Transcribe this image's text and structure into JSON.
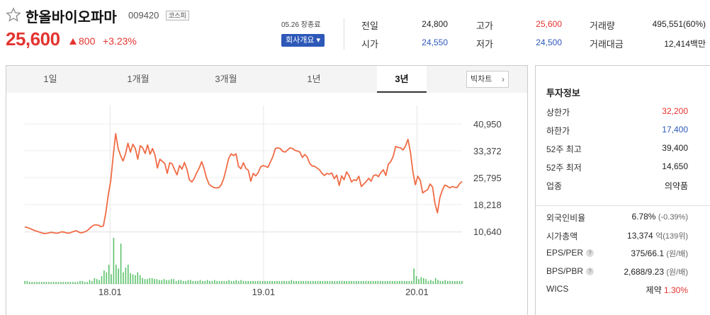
{
  "stock": {
    "name": "한올바이오파마",
    "code": "009420",
    "market": "코스피",
    "price": "25,600",
    "change": "800",
    "rate": "+3.23%"
  },
  "quote": {
    "date_label": "05.26 장종료",
    "company_button": "회사개요 ▾",
    "prev_close": {
      "label": "전일",
      "value": "24,800"
    },
    "open": {
      "label": "시가",
      "value": "24,550"
    },
    "high": {
      "label": "고가",
      "value": "25,600"
    },
    "low": {
      "label": "저가",
      "value": "24,500"
    },
    "volume": {
      "label": "거래량",
      "value": "495,551(60%)"
    },
    "amount": {
      "label": "거래대금",
      "value": "12,414백만"
    }
  },
  "tabs": [
    "1일",
    "1개월",
    "3개월",
    "1년",
    "3년"
  ],
  "active_tab": "3년",
  "bigchart_label": "빅차트",
  "invest": {
    "title": "투자정보",
    "rows": [
      {
        "label": "상한가",
        "value": "32,200",
        "color": "red"
      },
      {
        "label": "하한가",
        "value": "17,400",
        "color": "blue"
      },
      {
        "label": "52주 최고",
        "value": "39,400",
        "color": ""
      },
      {
        "label": "52주 최저",
        "value": "14,650",
        "color": ""
      },
      {
        "label": "업종",
        "value": "의약품",
        "color": ""
      }
    ],
    "rows2": [
      {
        "label": "외국인비율",
        "value": "6.78%",
        "sub": "(-0.39%)",
        "help": false
      },
      {
        "label": "시가총액",
        "value": "13,374",
        "sub": "억(139위)",
        "help": false
      },
      {
        "label": "EPS/PER",
        "value": "375/66.1",
        "sub": "(원/배)",
        "help": true
      },
      {
        "label": "BPS/PBR",
        "value": "2,688/9.23",
        "sub": "(원/배)",
        "help": true
      },
      {
        "label": "WICS",
        "value": "제약",
        "sub": "1.30%",
        "help": false
      }
    ]
  },
  "chart_data": {
    "type": "line",
    "y_ticks": [
      "40,950",
      "33,372",
      "25,795",
      "18,218",
      "10,640"
    ],
    "y_tick_values": [
      40950,
      33372,
      25795,
      18218,
      10640
    ],
    "x_ticks": [
      "18.01",
      "19.01",
      "20.01"
    ],
    "x_tick_positions": [
      0.195,
      0.546,
      0.897
    ],
    "ylim": [
      10640,
      40950
    ],
    "line_color": "#f06b45",
    "volume_color": "#5bc26a",
    "price_series": [
      11900,
      11750,
      11500,
      11200,
      10900,
      10700,
      10450,
      10250,
      10050,
      10150,
      10300,
      10400,
      10250,
      10150,
      10300,
      10550,
      10450,
      10250,
      10150,
      10400,
      10700,
      10850,
      10450,
      10250,
      10450,
      10700,
      11200,
      11900,
      12400,
      12500,
      12400,
      12000,
      12200,
      16000,
      21000,
      25000,
      32000,
      38200,
      34000,
      32000,
      30500,
      32500,
      35500,
      33000,
      35200,
      34000,
      31000,
      34800,
      34200,
      32600,
      35000,
      32400,
      34000,
      32200,
      28500,
      31000,
      30400,
      29800,
      27000,
      30000,
      29700,
      28000,
      26600,
      29200,
      28200,
      30100,
      28200,
      25200,
      24600,
      25600,
      27200,
      28500,
      30300,
      28300,
      25700,
      24000,
      23400,
      23000,
      22900,
      23000,
      23800,
      25600,
      28300,
      31200,
      32500,
      32000,
      32500,
      29000,
      28300,
      30000,
      28400,
      27900,
      24800,
      27000,
      26300,
      27200,
      28800,
      29200,
      29000,
      28700,
      30200,
      31700,
      34000,
      34200,
      34000,
      33200,
      33000,
      33600,
      34200,
      34000,
      33500,
      33300,
      33000,
      31500,
      32300,
      31600,
      29800,
      29100,
      29000,
      28500,
      28000,
      27000,
      26400,
      27000,
      26800,
      27100,
      25500,
      26500,
      23600,
      26300,
      25200,
      27400,
      26400,
      24600,
      25200,
      25000,
      26200,
      23300,
      24000,
      24700,
      25600,
      24800,
      26400,
      26600,
      26100,
      27300,
      28000,
      26400,
      29600,
      30300,
      31800,
      34600,
      34300,
      34200,
      33600,
      34700,
      36600,
      33000,
      27500,
      23800,
      26200,
      25100,
      21500,
      22000,
      22400,
      24000,
      23200,
      18500,
      15900,
      20200,
      22300,
      23700,
      23400,
      22900,
      23300,
      23100,
      23000,
      24100,
      24700
    ],
    "volume_series": [
      3,
      3,
      2,
      2,
      2,
      2,
      2,
      2,
      2,
      2,
      2,
      2,
      2,
      2,
      2,
      2,
      2,
      2,
      2,
      2,
      2,
      2,
      2,
      3,
      3,
      2,
      2,
      4,
      3,
      6,
      5,
      4,
      8,
      14,
      12,
      20,
      10,
      48,
      20,
      16,
      42,
      12,
      17,
      20,
      11,
      10,
      9,
      12,
      9,
      6,
      5,
      5,
      6,
      6,
      5,
      5,
      4,
      4,
      5,
      4,
      4,
      5,
      5,
      3,
      4,
      4,
      3,
      3,
      4,
      4,
      3,
      3,
      3,
      4,
      3,
      3,
      4,
      3,
      3,
      4,
      3,
      3,
      3,
      3,
      3,
      4,
      3,
      3,
      4,
      3,
      4,
      3,
      3,
      3,
      3,
      3,
      3,
      3,
      3,
      3,
      3,
      3,
      3,
      3,
      3,
      3,
      3,
      3,
      3,
      3,
      3,
      4,
      3,
      3,
      3,
      3,
      3,
      3,
      3,
      3,
      3,
      3,
      3,
      3,
      3,
      3,
      3,
      3,
      3,
      3,
      3,
      3,
      3,
      3,
      3,
      3,
      3,
      3,
      3,
      3,
      3,
      3,
      3,
      3,
      3,
      3,
      3,
      3,
      3,
      3,
      3,
      3,
      3,
      3,
      3,
      3,
      3,
      3,
      3,
      3,
      3,
      3,
      16,
      8,
      5,
      7,
      6,
      5,
      3,
      4,
      3,
      6,
      4,
      3,
      3,
      4,
      3,
      3,
      3,
      3,
      3,
      3,
      3
    ]
  }
}
